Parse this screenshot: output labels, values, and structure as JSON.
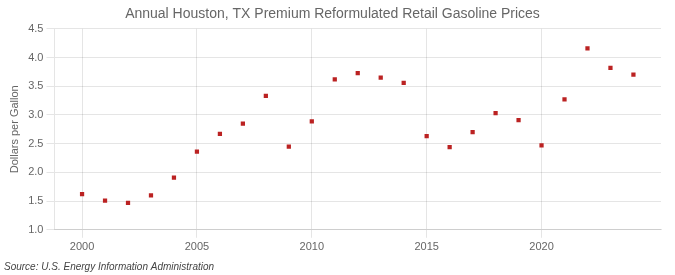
{
  "chart_data": {
    "type": "scatter",
    "title": "Annual Houston, TX Premium Reformulated Retail Gasoline Prices",
    "y_label": "Dollars per Gallon",
    "annotations": [
      "Source: U.S. Energy Information Administration"
    ],
    "x": [
      2000,
      2001,
      2002,
      2003,
      2004,
      2005,
      2006,
      2007,
      2008,
      2009,
      2010,
      2011,
      2012,
      2013,
      2014,
      2015,
      2016,
      2017,
      2018,
      2019,
      2020,
      2021,
      2022,
      2023,
      2024
    ],
    "values": [
      1.62,
      1.51,
      1.47,
      1.6,
      1.91,
      2.36,
      2.67,
      2.85,
      3.33,
      2.45,
      2.89,
      3.62,
      3.73,
      3.65,
      3.56,
      2.63,
      2.44,
      2.7,
      3.03,
      2.91,
      2.47,
      3.27,
      4.16,
      3.82,
      3.7
    ],
    "color": "#bb2222",
    "marker": "square",
    "xlim": [
      1998.8,
      2025.2
    ],
    "xticks": [
      2000,
      2005,
      2010,
      2015,
      2020
    ],
    "ylim": [
      1.0,
      4.5
    ],
    "yticks": [
      {
        "value": 1.0,
        "label": "1.0"
      },
      1.5,
      {
        "value": 2.0,
        "label": "2.0"
      },
      2.5,
      {
        "value": 3.0,
        "label": "3.0"
      },
      3.5,
      {
        "value": 4.0,
        "label": "4.0"
      },
      4.5
    ],
    "grid": true
  }
}
